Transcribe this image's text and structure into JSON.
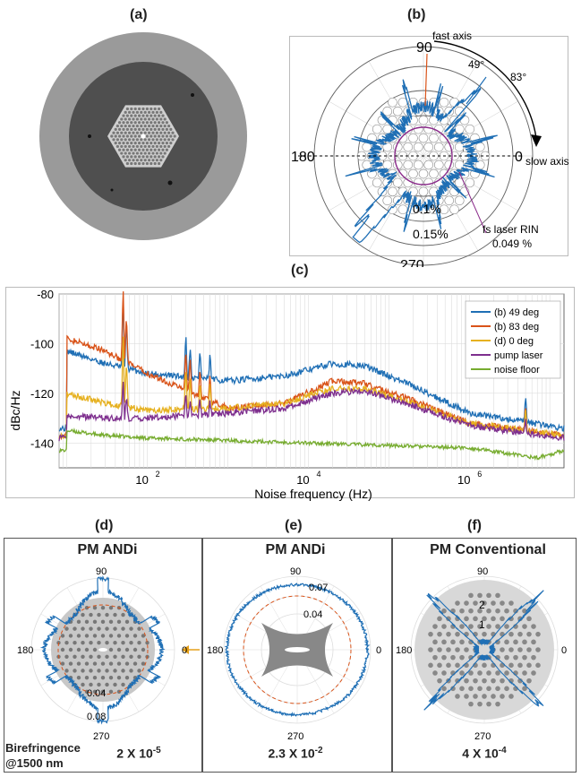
{
  "labels": {
    "a": "(a)",
    "b": "(b)",
    "c": "(c)",
    "d": "(d)",
    "e": "(e)",
    "f": "(f)"
  },
  "panel_b": {
    "angles": {
      "a90": "90",
      "a180": "180",
      "a270": "270",
      "a0": "0"
    },
    "fast_axis": "fast axis",
    "slow_axis": "slow axis",
    "angle1": "49°",
    "angle2": "83°",
    "ring1": "0.1%",
    "ring2": "0.15%",
    "rin_label": "fs laser RIN",
    "rin_value": "0.049 %"
  },
  "chart_data": [
    {
      "type": "line",
      "ylabel": "dBc/Hz",
      "xlabel": "Noise frequency (Hz)",
      "x_scale": "log",
      "xlim": [
        8,
        15000000
      ],
      "ylim": [
        -150,
        -80
      ],
      "y_ticks": [
        "-80",
        "-100",
        "-120",
        "-140"
      ],
      "x_ticks": [
        "10",
        "10",
        "10"
      ],
      "x_tick_exp": [
        "2",
        "4",
        "6"
      ],
      "grid": true,
      "legend_position": "top-right",
      "series": [
        {
          "name": "(b) 49 deg",
          "color": "#1f6fb5",
          "baseline": [
            [
              10,
              -103
            ],
            [
              30,
              -108
            ],
            [
              100,
              -112
            ],
            [
              1000,
              -115
            ],
            [
              5000,
              -113
            ],
            [
              20000,
              -108
            ],
            [
              50000,
              -109
            ],
            [
              200000,
              -117
            ],
            [
              1000000,
              -128
            ],
            [
              15000000,
              -134
            ]
          ]
        },
        {
          "name": "(b) 83 deg",
          "color": "#d95319",
          "baseline": [
            [
              10,
              -98
            ],
            [
              30,
              -103
            ],
            [
              100,
              -112
            ],
            [
              1000,
              -126
            ],
            [
              5000,
              -124
            ],
            [
              20000,
              -115
            ],
            [
              50000,
              -116
            ],
            [
              200000,
              -123
            ],
            [
              1000000,
              -132
            ],
            [
              15000000,
              -137
            ]
          ]
        },
        {
          "name": "(d) 0 deg",
          "color": "#e6b120",
          "baseline": [
            [
              10,
              -120
            ],
            [
              30,
              -124
            ],
            [
              100,
              -127
            ],
            [
              1000,
              -126
            ],
            [
              5000,
              -124
            ],
            [
              20000,
              -118
            ],
            [
              50000,
              -118
            ],
            [
              200000,
              -124
            ],
            [
              1000000,
              -132
            ],
            [
              15000000,
              -137
            ]
          ]
        },
        {
          "name": "pump laser",
          "color": "#7e2f8e",
          "baseline": [
            [
              10,
              -129
            ],
            [
              30,
              -130
            ],
            [
              100,
              -130
            ],
            [
              1000,
              -128
            ],
            [
              5000,
              -126
            ],
            [
              20000,
              -120
            ],
            [
              50000,
              -119
            ],
            [
              200000,
              -125
            ],
            [
              1000000,
              -133
            ],
            [
              15000000,
              -138
            ]
          ]
        },
        {
          "name": "noise floor",
          "color": "#77ac30",
          "baseline": [
            [
              10,
              -135
            ],
            [
              30,
              -137
            ],
            [
              100,
              -138
            ],
            [
              1000,
              -139
            ],
            [
              10000,
              -140
            ],
            [
              100000,
              -141
            ],
            [
              1000000,
              -142
            ],
            [
              7000000,
              -146
            ],
            [
              15000000,
              -143
            ]
          ]
        }
      ]
    }
  ],
  "panel_d": {
    "title": "PM ANDi",
    "a90": "90",
    "a180": "180",
    "a270": "270",
    "a0": "0",
    "r1": "0.04",
    "r2": "0.08"
  },
  "panel_e": {
    "title": "PM ANDi",
    "a90": "90",
    "a180": "180",
    "a270": "270",
    "a0": "0",
    "r1": "0.07",
    "r2": "0.04"
  },
  "panel_f": {
    "title": "PM Conventional",
    "a90": "90",
    "a180": "180",
    "a270": "270",
    "a0": "0",
    "r1": "2",
    "r2": "1"
  },
  "birefringence": {
    "label1": "Birefringence",
    "label2": "@1500 nm",
    "d_base": "2 X 10",
    "d_exp": "-5",
    "e_base": "2.3 X 10",
    "e_exp": "-2",
    "f_base": "4 X 10",
    "f_exp": "-4"
  }
}
